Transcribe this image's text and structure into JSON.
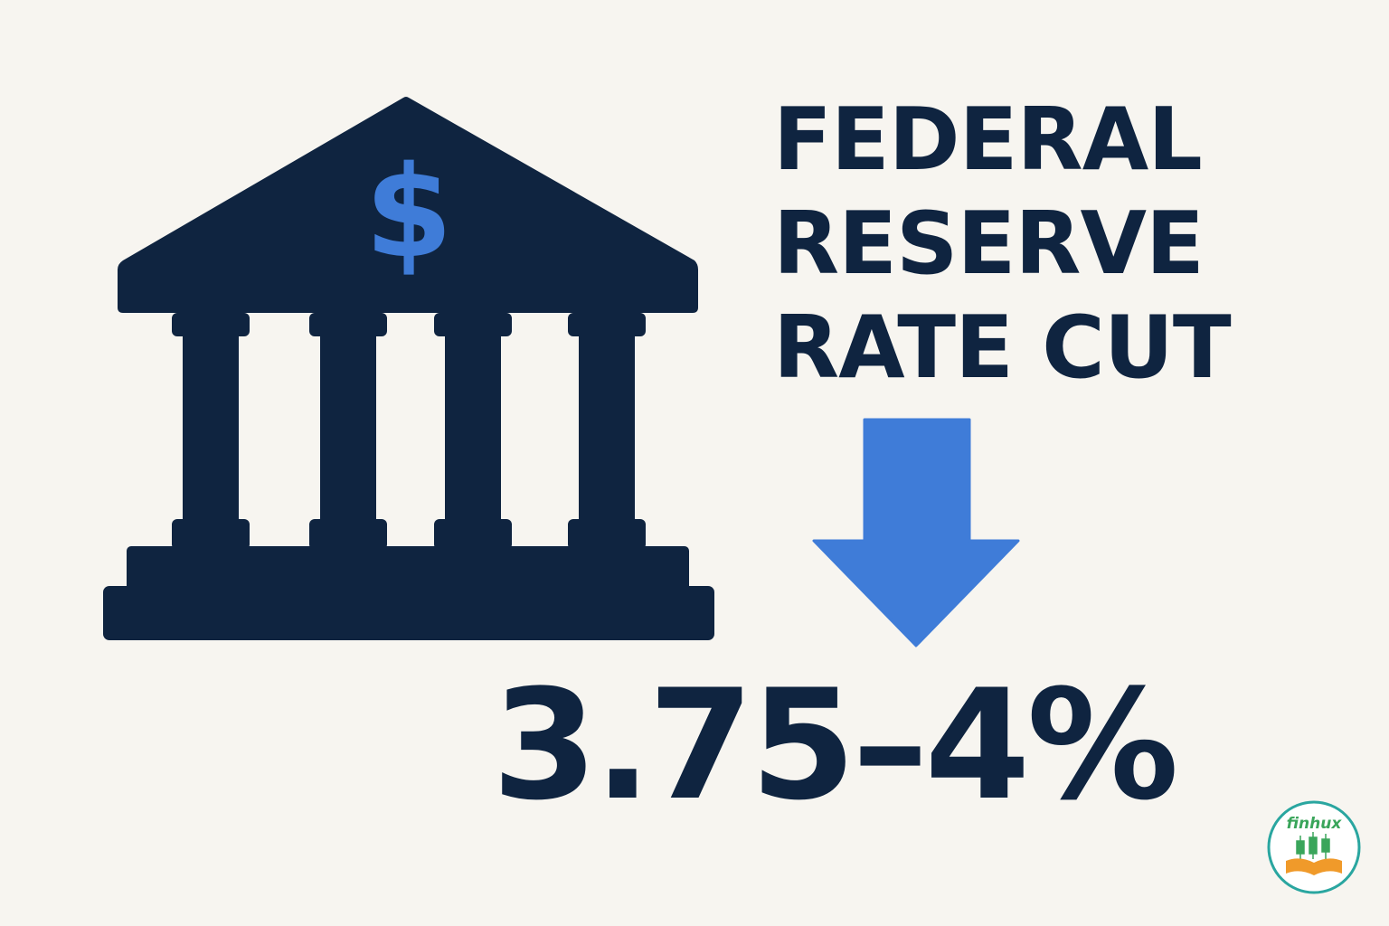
{
  "headline": {
    "line1": "FEDERAL",
    "line2": "RESERVE",
    "line3": "RATE CUT"
  },
  "bank_icon": {
    "name": "bank-building-icon",
    "symbol": "$"
  },
  "arrow": {
    "name": "down-arrow-icon"
  },
  "rate_range": "3.75–4%",
  "logo": {
    "name": "finhux-logo",
    "text": "finhux"
  },
  "colors": {
    "background": "#f7f5f0",
    "navy": "#0f2440",
    "accent_blue": "#3f7cd8",
    "logo_green": "#3aa55b",
    "logo_orange": "#f09a2a",
    "logo_ring": "#2aa6a0"
  }
}
